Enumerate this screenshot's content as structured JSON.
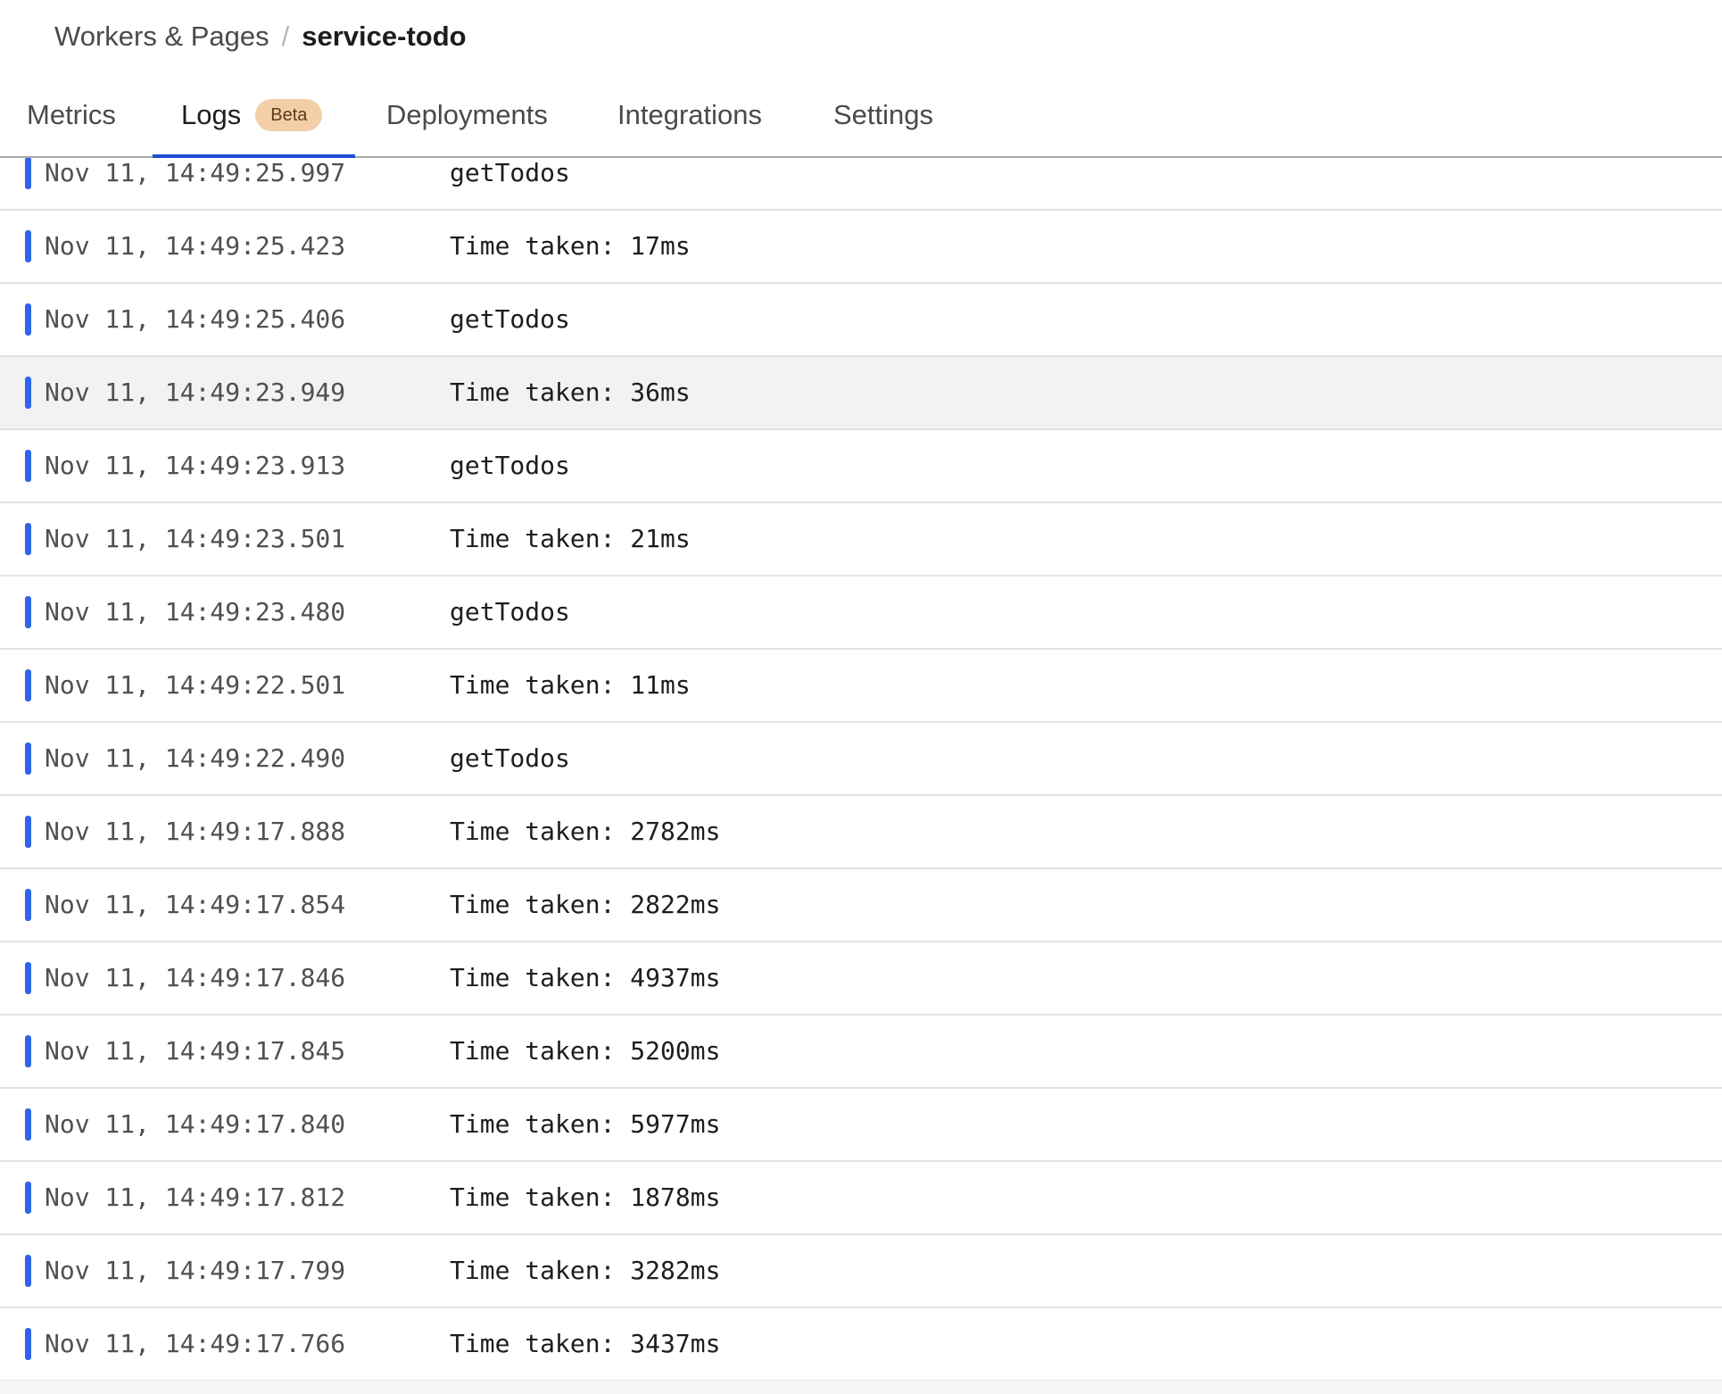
{
  "breadcrumb": {
    "parent": "Workers & Pages",
    "separator": "/",
    "current": "service-todo"
  },
  "tabs": [
    {
      "label": "Metrics"
    },
    {
      "label": "Logs",
      "badge": "Beta",
      "active": true
    },
    {
      "label": "Deployments"
    },
    {
      "label": "Integrations"
    },
    {
      "label": "Settings"
    }
  ],
  "colors": {
    "accent": "#1f4fcf",
    "log_level_bar": "#2f63ea",
    "badge_bg": "#f3cfa8",
    "row_highlight": "#f2f2f2"
  },
  "logs": [
    {
      "timestamp": "Nov 11, 14:49:25.997",
      "message": "getTodos"
    },
    {
      "timestamp": "Nov 11, 14:49:25.423",
      "message": "Time taken: 17ms"
    },
    {
      "timestamp": "Nov 11, 14:49:25.406",
      "message": "getTodos"
    },
    {
      "timestamp": "Nov 11, 14:49:23.949",
      "message": "Time taken: 36ms",
      "hovered": true
    },
    {
      "timestamp": "Nov 11, 14:49:23.913",
      "message": "getTodos"
    },
    {
      "timestamp": "Nov 11, 14:49:23.501",
      "message": "Time taken: 21ms"
    },
    {
      "timestamp": "Nov 11, 14:49:23.480",
      "message": "getTodos"
    },
    {
      "timestamp": "Nov 11, 14:49:22.501",
      "message": "Time taken: 11ms"
    },
    {
      "timestamp": "Nov 11, 14:49:22.490",
      "message": "getTodos"
    },
    {
      "timestamp": "Nov 11, 14:49:17.888",
      "message": "Time taken: 2782ms"
    },
    {
      "timestamp": "Nov 11, 14:49:17.854",
      "message": "Time taken: 2822ms"
    },
    {
      "timestamp": "Nov 11, 14:49:17.846",
      "message": "Time taken: 4937ms"
    },
    {
      "timestamp": "Nov 11, 14:49:17.845",
      "message": "Time taken: 5200ms"
    },
    {
      "timestamp": "Nov 11, 14:49:17.840",
      "message": "Time taken: 5977ms"
    },
    {
      "timestamp": "Nov 11, 14:49:17.812",
      "message": "Time taken: 1878ms"
    },
    {
      "timestamp": "Nov 11, 14:49:17.799",
      "message": "Time taken: 3282ms"
    },
    {
      "timestamp": "Nov 11, 14:49:17.766",
      "message": "Time taken: 3437ms"
    }
  ]
}
